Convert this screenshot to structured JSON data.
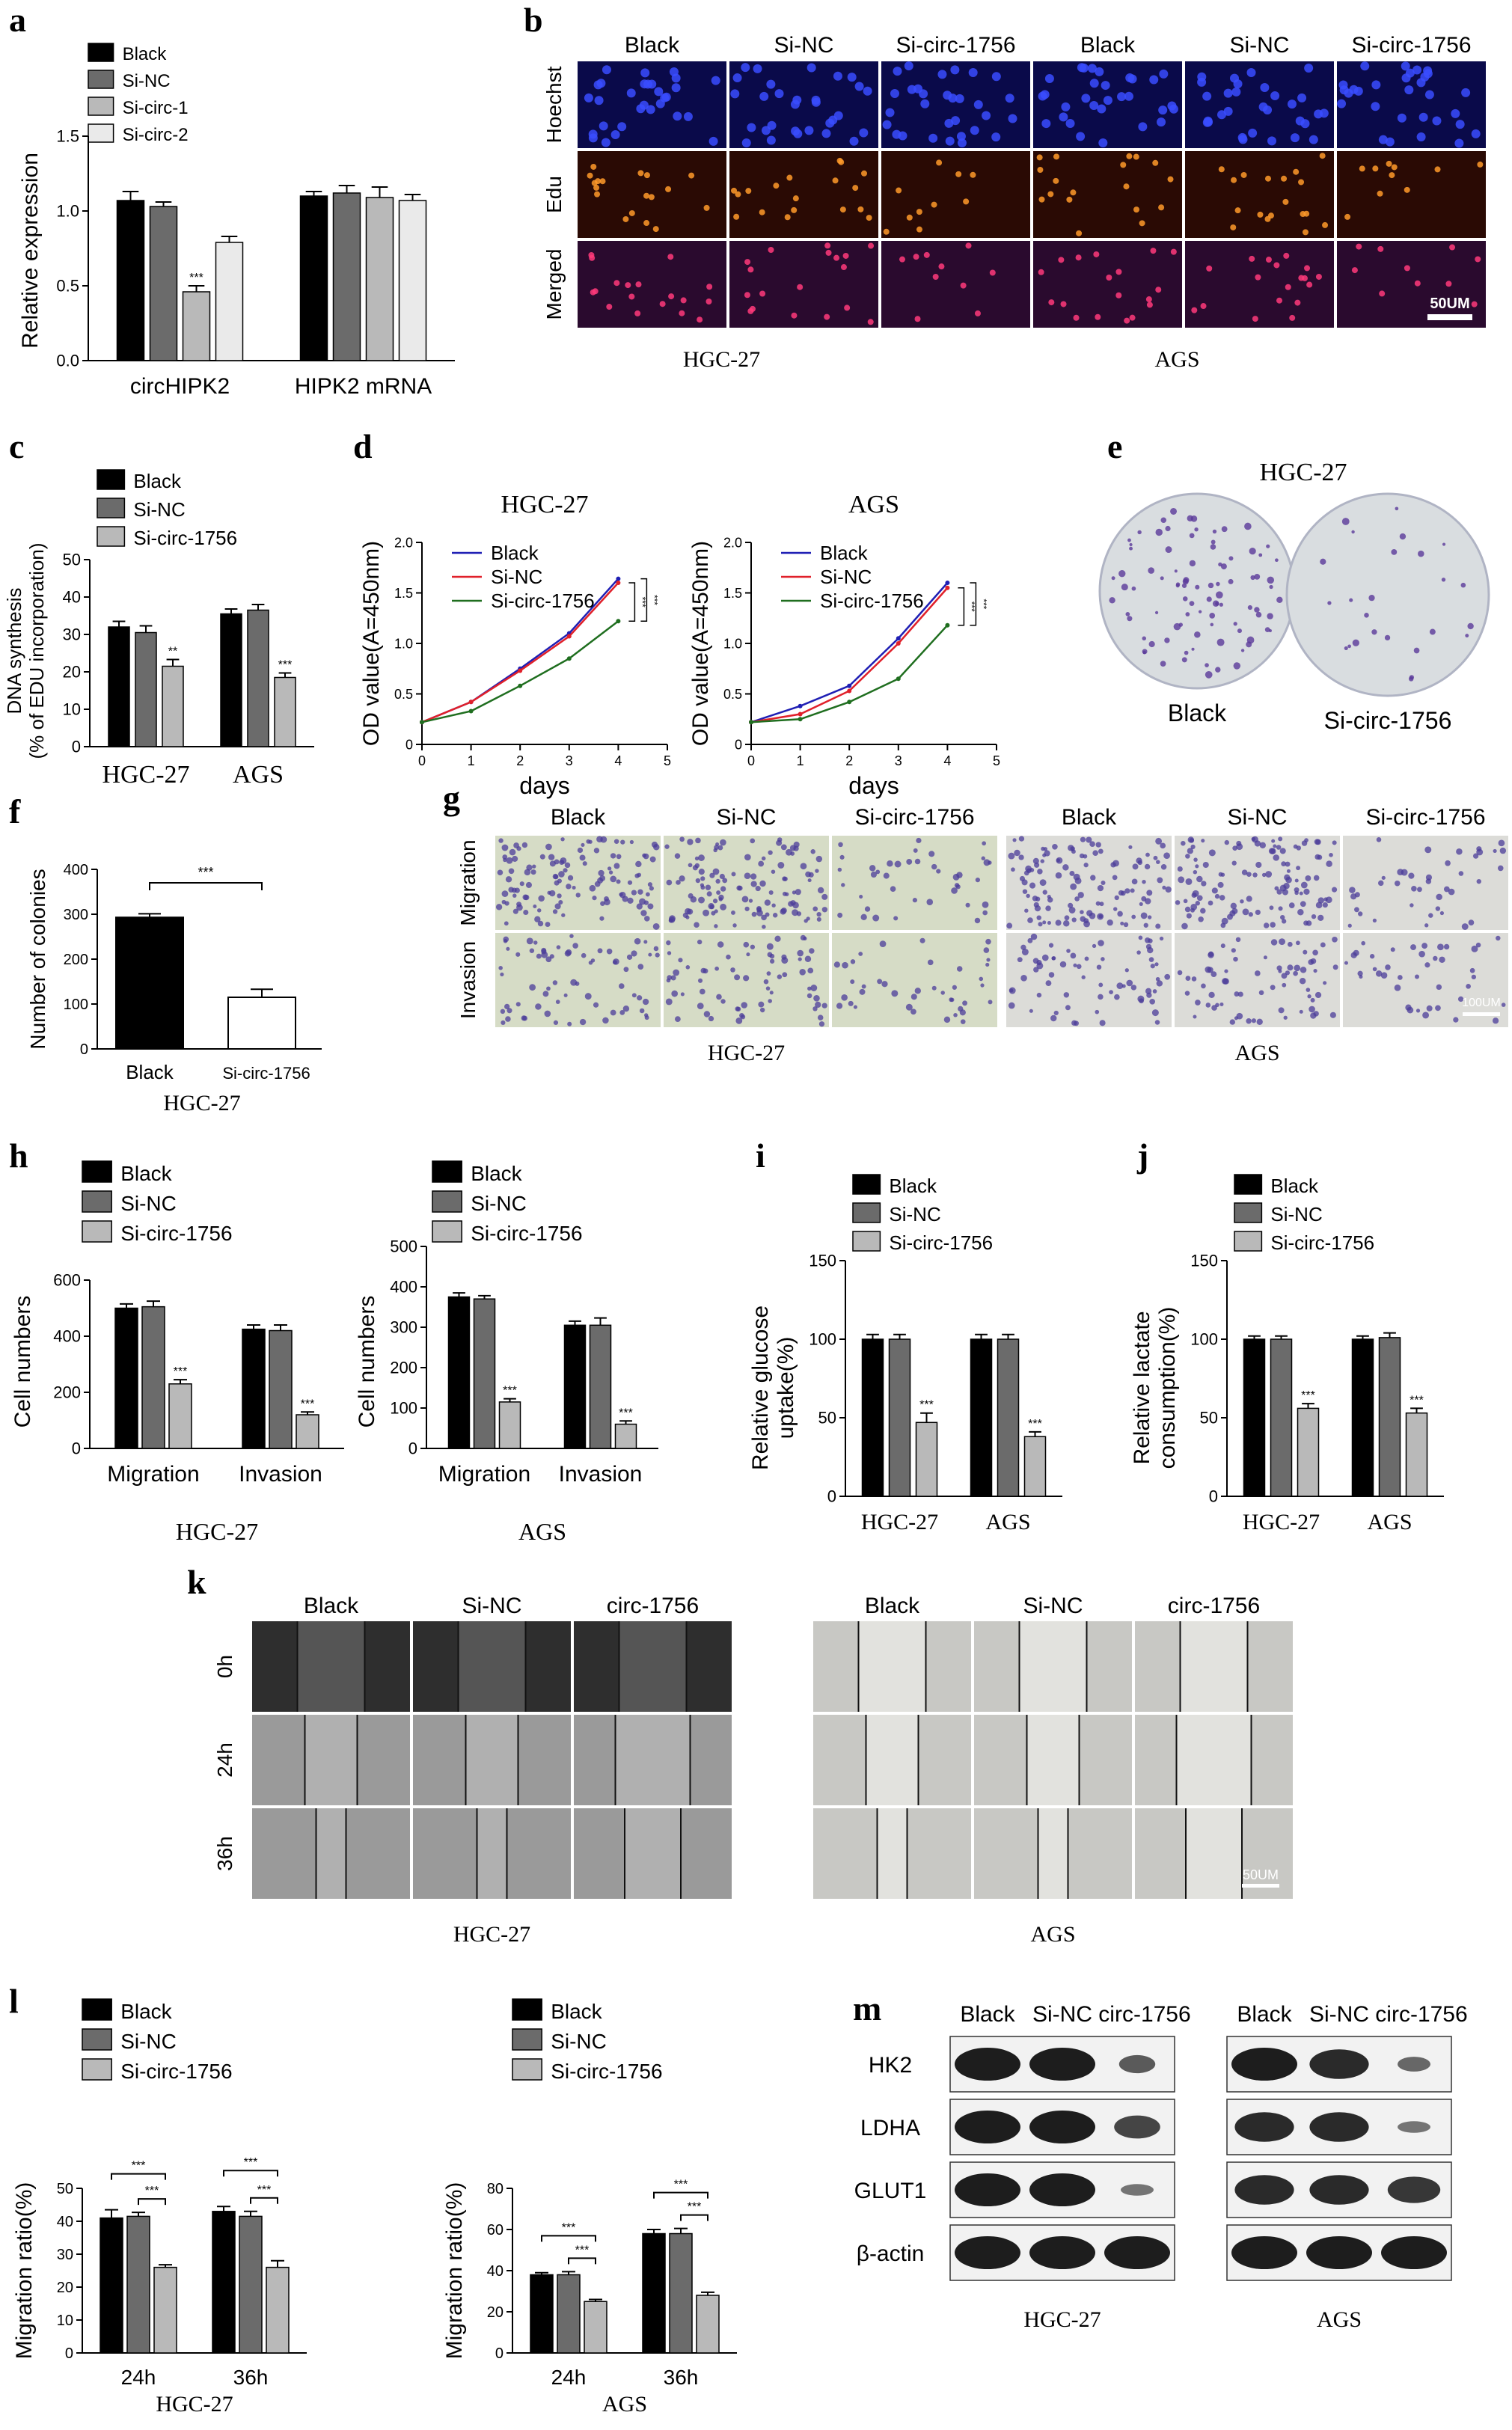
{
  "colors": {
    "black": "#000000",
    "dark_gray": "#6b6b6b",
    "light_gray": "#b9b9b9",
    "lighter_gray": "#eaeaea",
    "white": "#ffffff",
    "line_blue": "#1f1fb4",
    "line_red": "#e0202a",
    "line_green": "#1f6e1f",
    "hoechst": "#0a0a4a",
    "edu": "#2a0a04",
    "merged": "#2a0a2e",
    "crystal": "#d9dde0",
    "scratch_dark": "#444444",
    "scratch_light": "#cfcfcf",
    "blot_bg": "#f2f2f2",
    "blot_band": "#111111"
  },
  "panel_letters": {
    "a": "a",
    "b": "b",
    "c": "c",
    "d": "d",
    "e": "e",
    "f": "f",
    "g": "g",
    "h": "h",
    "i": "i",
    "j": "j",
    "k": "k",
    "l": "l",
    "m": "m"
  },
  "sig": {
    "s3": "***",
    "s2": "**"
  },
  "panel_b": {
    "cols": [
      "Black",
      "Si-NC",
      "Si-circ-1756",
      "Black",
      "Si-NC",
      "Si-circ-1756"
    ],
    "rows": [
      "Hoechst",
      "Edu",
      "Merged"
    ],
    "groups": [
      "HGC-27",
      "AGS"
    ],
    "scalebar": "50UM"
  },
  "panel_e": {
    "title": "HGC-27",
    "labels": [
      "Black",
      "Si-circ-1756"
    ]
  },
  "panel_g": {
    "cols": [
      "Black",
      "Si-NC",
      "Si-circ-1756",
      "Black",
      "Si-NC",
      "Si-circ-1756"
    ],
    "rows": [
      "Migration",
      "Invasion"
    ],
    "groups": [
      "HGC-27",
      "AGS"
    ],
    "scalebar": "100UM"
  },
  "panel_k": {
    "cols_left": [
      "Black",
      "Si-NC",
      "circ-1756"
    ],
    "cols_right": [
      "Black",
      "Si-NC",
      "circ-1756"
    ],
    "rows": [
      "0h",
      "24h",
      "36h"
    ],
    "groups": [
      "HGC-27",
      "AGS"
    ],
    "scalebar": "50UM"
  },
  "panel_m": {
    "cols": [
      "Black",
      "Si-NC",
      "circ-1756",
      "Black",
      "Si-NC",
      "circ-1756"
    ],
    "rows": [
      "HK2",
      "LDHA",
      "GLUT1",
      "β-actin"
    ],
    "groups": [
      "HGC-27",
      "AGS"
    ],
    "intensity": {
      "left": [
        [
          1,
          1,
          0.55
        ],
        [
          1,
          1,
          0.7
        ],
        [
          1,
          1,
          0.35
        ],
        [
          1,
          1,
          1
        ]
      ],
      "right": [
        [
          1,
          0.9,
          0.45
        ],
        [
          0.9,
          0.9,
          0.35
        ],
        [
          0.9,
          0.9,
          0.8
        ],
        [
          1,
          1,
          1
        ]
      ]
    }
  },
  "chart_data": [
    {
      "id": "a",
      "type": "bar",
      "categories": [
        "circHIPK2",
        "HIPK2 mRNA"
      ],
      "ylabel": "Relative expression",
      "ylim": [
        0,
        1.5
      ],
      "yticks": [
        "0.0",
        "0.5",
        "1.0",
        "1.5"
      ],
      "series": [
        {
          "name": "Black",
          "values": [
            1.07,
            1.1
          ]
        },
        {
          "name": "Si-NC",
          "values": [
            1.03,
            1.12
          ]
        },
        {
          "name": "Si-circ-1",
          "values": [
            0.46,
            1.09
          ]
        },
        {
          "name": "Si-circ-2",
          "values": [
            0.79,
            1.07
          ]
        }
      ],
      "errors": [
        [
          0.06,
          0.03
        ],
        [
          0.03,
          0.05
        ],
        [
          0.04,
          0.07
        ],
        [
          0.04,
          0.04
        ]
      ],
      "sig": [
        [
          "",
          "",
          "***",
          ""
        ],
        [
          "",
          "",
          "",
          ""
        ]
      ]
    },
    {
      "id": "c",
      "type": "bar",
      "categories": [
        "HGC-27",
        "AGS"
      ],
      "ylabel": "DNA synthesis",
      "ylabel2": "(% of EDU incorporation)",
      "ylim": [
        0,
        50
      ],
      "yticks": [
        "0",
        "10",
        "20",
        "30",
        "40",
        "50"
      ],
      "series": [
        {
          "name": "Black",
          "values": [
            32,
            35.5
          ]
        },
        {
          "name": "Si-NC",
          "values": [
            30.5,
            36.5
          ]
        },
        {
          "name": "Si-circ-1756",
          "values": [
            21.5,
            18.5
          ]
        }
      ],
      "errors": [
        [
          1.5,
          1.3
        ],
        [
          1.8,
          1.5
        ],
        [
          1.8,
          1.2
        ]
      ],
      "sig": [
        [
          "",
          "",
          "**"
        ],
        [
          "",
          "",
          "***"
        ]
      ]
    },
    {
      "id": "d1",
      "type": "line",
      "title": "HGC-27",
      "xlabel": "days",
      "ylabel": "OD value(A=450nm)",
      "xlim": [
        0,
        5
      ],
      "ylim": [
        0,
        2.0
      ],
      "xticks": [
        "0",
        "1",
        "2",
        "3",
        "4",
        "5"
      ],
      "yticks": [
        "0",
        "0.5",
        "1.0",
        "1.5",
        "2.0"
      ],
      "x": [
        0,
        1,
        2,
        3,
        4
      ],
      "series": [
        {
          "name": "Black",
          "values": [
            0.22,
            0.42,
            0.75,
            1.1,
            1.64
          ]
        },
        {
          "name": "Si-NC",
          "values": [
            0.22,
            0.42,
            0.73,
            1.07,
            1.6
          ]
        },
        {
          "name": "Si-circ-1756",
          "values": [
            0.22,
            0.33,
            0.58,
            0.85,
            1.22
          ]
        }
      ],
      "sig": [
        "***",
        "***"
      ]
    },
    {
      "id": "d2",
      "type": "line",
      "title": "AGS",
      "xlabel": "days",
      "ylabel": "OD value(A=450nm)",
      "xlim": [
        0,
        5
      ],
      "ylim": [
        0,
        2.0
      ],
      "xticks": [
        "0",
        "1",
        "2",
        "3",
        "4",
        "5"
      ],
      "yticks": [
        "0",
        "0.5",
        "1.0",
        "1.5",
        "2.0"
      ],
      "x": [
        0,
        1,
        2,
        3,
        4
      ],
      "series": [
        {
          "name": "Black",
          "values": [
            0.22,
            0.38,
            0.58,
            1.05,
            1.6
          ]
        },
        {
          "name": "Si-NC",
          "values": [
            0.22,
            0.3,
            0.53,
            1.0,
            1.55
          ]
        },
        {
          "name": "Si-circ-1756",
          "values": [
            0.22,
            0.25,
            0.42,
            0.65,
            1.18
          ]
        }
      ],
      "sig": [
        "***",
        "***"
      ]
    },
    {
      "id": "f",
      "type": "bar",
      "categories": [
        "Black",
        "Si-circ-1756"
      ],
      "group": "HGC-27",
      "ylabel": "Number of colonies",
      "ylim": [
        0,
        400
      ],
      "yticks": [
        "0",
        "100",
        "200",
        "300",
        "400"
      ],
      "values": [
        293,
        115
      ],
      "errors": [
        8,
        18
      ],
      "sig": "***"
    },
    {
      "id": "h1",
      "type": "bar",
      "categories": [
        "Migration",
        "Invasion"
      ],
      "group": "HGC-27",
      "ylabel": "Cell numbers",
      "ylim": [
        0,
        600
      ],
      "yticks": [
        "0",
        "200",
        "400",
        "600"
      ],
      "series": [
        {
          "name": "Black",
          "values": [
            500,
            425
          ]
        },
        {
          "name": "Si-NC",
          "values": [
            505,
            420
          ]
        },
        {
          "name": "Si-circ-1756",
          "values": [
            230,
            120
          ]
        }
      ],
      "errors": [
        [
          15,
          15
        ],
        [
          20,
          20
        ],
        [
          15,
          10
        ]
      ],
      "sig": [
        [
          "",
          "",
          "***"
        ],
        [
          "",
          "",
          "***"
        ]
      ]
    },
    {
      "id": "h2",
      "type": "bar",
      "categories": [
        "Migration",
        "Invasion"
      ],
      "group": "AGS",
      "ylabel": "Cell numbers",
      "ylim": [
        0,
        500
      ],
      "yticks": [
        "0",
        "100",
        "200",
        "300",
        "400",
        "500"
      ],
      "series": [
        {
          "name": "Black",
          "values": [
            375,
            305
          ]
        },
        {
          "name": "Si-NC",
          "values": [
            370,
            305
          ]
        },
        {
          "name": "Si-circ-1756",
          "values": [
            115,
            60
          ]
        }
      ],
      "errors": [
        [
          10,
          10
        ],
        [
          8,
          18
        ],
        [
          8,
          8
        ]
      ],
      "sig": [
        [
          "",
          "",
          "***"
        ],
        [
          "",
          "",
          "***"
        ]
      ]
    },
    {
      "id": "i",
      "type": "bar",
      "categories": [
        "HGC-27",
        "AGS"
      ],
      "ylabel": "Relative glucose",
      "ylabel2": "uptake(%)",
      "ylim": [
        0,
        150
      ],
      "yticks": [
        "0",
        "50",
        "100",
        "150"
      ],
      "series": [
        {
          "name": "Black",
          "values": [
            100,
            100
          ]
        },
        {
          "name": "Si-NC",
          "values": [
            100,
            100
          ]
        },
        {
          "name": "Si-circ-1756",
          "values": [
            47,
            38
          ]
        }
      ],
      "errors": [
        [
          3,
          3
        ],
        [
          3,
          3
        ],
        [
          6,
          3
        ]
      ],
      "sig": [
        [
          "",
          "",
          "***"
        ],
        [
          "",
          "",
          "***"
        ]
      ]
    },
    {
      "id": "j",
      "type": "bar",
      "categories": [
        "HGC-27",
        "AGS"
      ],
      "ylabel": "Relative lactate",
      "ylabel2": "consumption(%)",
      "ylim": [
        0,
        150
      ],
      "yticks": [
        "0",
        "50",
        "100",
        "150"
      ],
      "series": [
        {
          "name": "Black",
          "values": [
            100,
            100
          ]
        },
        {
          "name": "Si-NC",
          "values": [
            100,
            101
          ]
        },
        {
          "name": "Si-circ-1756",
          "values": [
            56,
            53
          ]
        }
      ],
      "errors": [
        [
          2,
          2
        ],
        [
          2,
          3
        ],
        [
          3,
          3
        ]
      ],
      "sig": [
        [
          "",
          "",
          "***"
        ],
        [
          "",
          "",
          "***"
        ]
      ]
    },
    {
      "id": "l1",
      "type": "bar",
      "categories": [
        "24h",
        "36h"
      ],
      "group": "HGC-27",
      "ylabel": "Migration ratio(%)",
      "ylim": [
        0,
        50
      ],
      "yticks": [
        "0",
        "10",
        "20",
        "30",
        "40",
        "50"
      ],
      "series": [
        {
          "name": "Black",
          "values": [
            41,
            43
          ]
        },
        {
          "name": "Si-NC",
          "values": [
            41.5,
            41.5
          ]
        },
        {
          "name": "Si-circ-1756",
          "values": [
            26,
            26
          ]
        }
      ],
      "errors": [
        [
          2.5,
          1.5
        ],
        [
          1.2,
          1.5
        ],
        [
          0.8,
          2
        ]
      ],
      "sig": "***"
    },
    {
      "id": "l2",
      "type": "bar",
      "categories": [
        "24h",
        "36h"
      ],
      "group": "AGS",
      "ylabel": "Migration ratio(%)",
      "ylim": [
        0,
        80
      ],
      "yticks": [
        "0",
        "20",
        "40",
        "60",
        "80"
      ],
      "series": [
        {
          "name": "Black",
          "values": [
            38,
            58
          ]
        },
        {
          "name": "Si-NC",
          "values": [
            38,
            58
          ]
        },
        {
          "name": "Si-circ-1756",
          "values": [
            25,
            28
          ]
        }
      ],
      "errors": [
        [
          1,
          2
        ],
        [
          1.5,
          2.5
        ],
        [
          1,
          1.5
        ]
      ],
      "sig": "***"
    }
  ]
}
